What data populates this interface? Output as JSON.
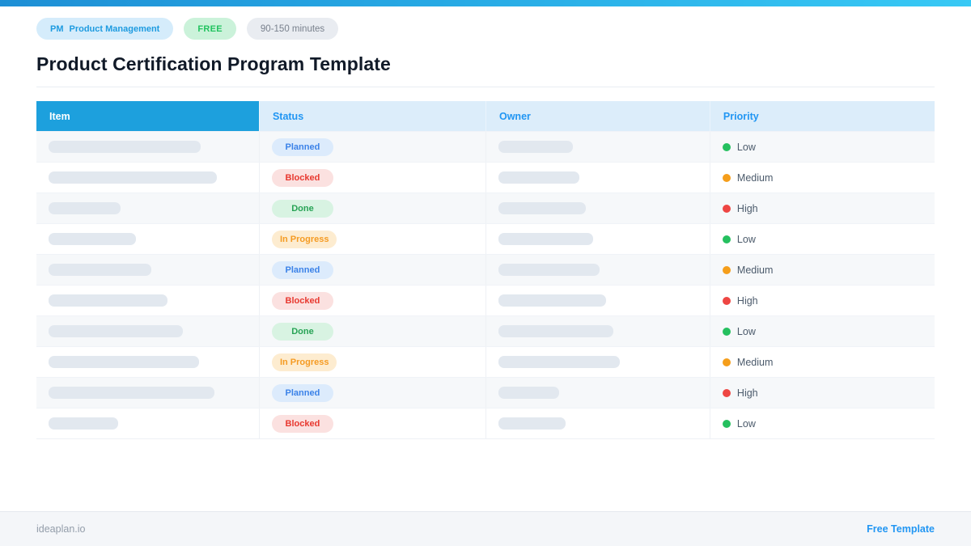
{
  "topbar": {
    "gradient_left": "#1e8fd5",
    "gradient_right": "#38c9f5"
  },
  "badges": {
    "pm": {
      "prefix": "PM",
      "label": "Product Management"
    },
    "free": {
      "label": "FREE"
    },
    "duration": {
      "label": "90-150 minutes"
    }
  },
  "page": {
    "title": "Product Certification Program Template"
  },
  "table": {
    "columns": [
      "Item",
      "Status",
      "Owner",
      "Priority"
    ],
    "rows": [
      {
        "status": "Planned",
        "priority": "Low",
        "item_bar_width": 188,
        "owner_bar_width": 92
      },
      {
        "status": "Blocked",
        "priority": "Medium",
        "item_bar_width": 208,
        "owner_bar_width": 100
      },
      {
        "status": "Done",
        "priority": "High",
        "item_bar_width": 89,
        "owner_bar_width": 108
      },
      {
        "status": "In Progress",
        "priority": "Low",
        "item_bar_width": 108,
        "owner_bar_width": 117
      },
      {
        "status": "Planned",
        "priority": "Medium",
        "item_bar_width": 127,
        "owner_bar_width": 125
      },
      {
        "status": "Blocked",
        "priority": "High",
        "item_bar_width": 147,
        "owner_bar_width": 133
      },
      {
        "status": "Done",
        "priority": "Low",
        "item_bar_width": 166,
        "owner_bar_width": 142
      },
      {
        "status": "In Progress",
        "priority": "Medium",
        "item_bar_width": 186,
        "owner_bar_width": 150
      },
      {
        "status": "Planned",
        "priority": "High",
        "item_bar_width": 205,
        "owner_bar_width": 75
      },
      {
        "status": "Blocked",
        "priority": "Low",
        "item_bar_width": 86,
        "owner_bar_width": 83
      }
    ],
    "status_styles": {
      "Planned": {
        "bg": "#dcebfc",
        "text": "#3b82e8"
      },
      "Blocked": {
        "bg": "#fbe1e0",
        "text": "#e8382f"
      },
      "Done": {
        "bg": "#d8f3e2",
        "text": "#27a355"
      },
      "In Progress": {
        "bg": "#fdecd0",
        "text": "#f59b23"
      }
    },
    "priority_colors": {
      "Low": "#25c05f",
      "Medium": "#f59e1b",
      "High": "#ee4643"
    }
  },
  "footer": {
    "left": "ideaplan.io",
    "right": "Free Template"
  },
  "colors": {
    "accent": "#2196f3",
    "header_item_bg": "#1da0dd",
    "header_light_bg": "#dcedfa"
  }
}
